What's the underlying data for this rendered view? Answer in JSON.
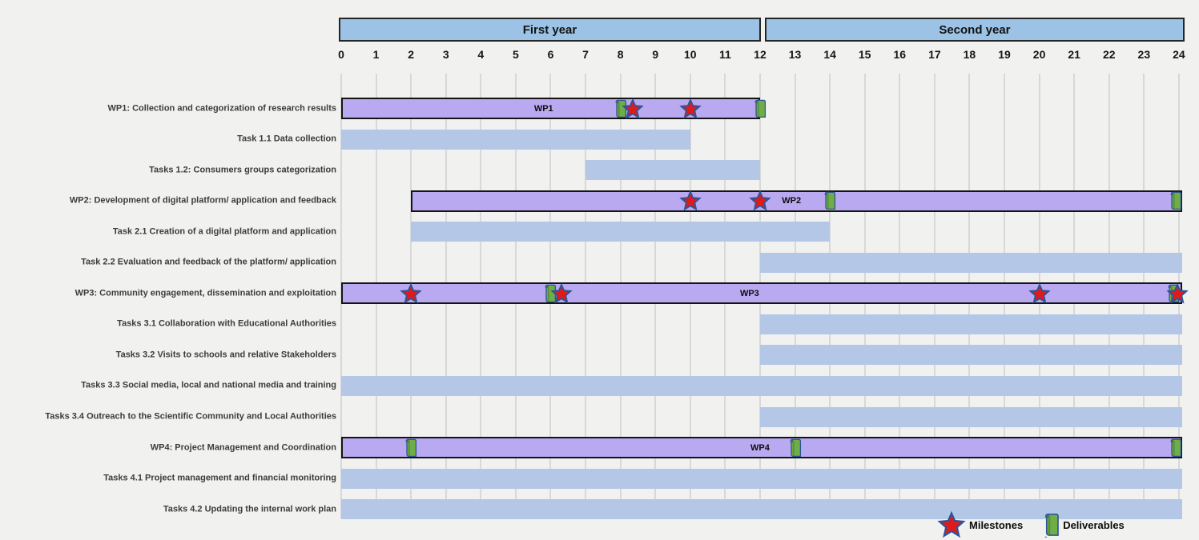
{
  "legend": {
    "milestones_label": "Milestones",
    "deliverables_label": "Deliverables"
  },
  "colors": {
    "year_band_fill": "#9cc3e5",
    "year_band_border": "#262626",
    "wp_bar_fill": "#b9a9f1",
    "wp_bar_border": "#141414",
    "task_bar_fill": "#b4c7e7",
    "milestone_fill": "#e01a1a",
    "marker_outline": "#2e5496",
    "deliverable_fill": "#6fae47",
    "gridline": "#d8d8d8",
    "background": "#f1f1f0"
  },
  "chart_data": {
    "type": "gantt",
    "title": "",
    "x_axis": {
      "min": 0,
      "max": 24,
      "tick_interval": 1,
      "ticks": [
        0,
        1,
        2,
        3,
        4,
        5,
        6,
        7,
        8,
        9,
        10,
        11,
        12,
        13,
        14,
        15,
        16,
        17,
        18,
        19,
        20,
        21,
        22,
        23,
        24
      ],
      "unit": "month",
      "grid": true,
      "bands": [
        {
          "label": "First year",
          "start": 0,
          "end": 12
        },
        {
          "label": "Second year",
          "start": 12,
          "end": 24
        }
      ]
    },
    "legend_entries": [
      "Milestones",
      "Deliverables"
    ],
    "rows": [
      {
        "label": "WP1: Collection and categorization of research results",
        "kind": "wp",
        "bar_label": "WP1",
        "bar_label_month": 5.8,
        "start": 0,
        "end": 12,
        "deliverables": [
          8,
          12
        ],
        "milestones": [
          8.35,
          10
        ]
      },
      {
        "label": "Task 1.1 Data collection",
        "kind": "task",
        "start": 0,
        "end": 10,
        "deliverables": [],
        "milestones": []
      },
      {
        "label": "Tasks 1.2: Consumers groups categorization",
        "kind": "task",
        "start": 7,
        "end": 12,
        "deliverables": [],
        "milestones": []
      },
      {
        "label": "WP2: Development of digital platform/ application and feedback",
        "kind": "wp",
        "bar_label": "WP2",
        "bar_label_month": 12.9,
        "start": 2,
        "end": 24,
        "deliverables": [
          14,
          23.9
        ],
        "milestones": [
          10,
          12
        ]
      },
      {
        "label": "Task 2.1 Creation of a digital platform and application",
        "kind": "task",
        "start": 2,
        "end": 14,
        "deliverables": [],
        "milestones": []
      },
      {
        "label": "Task 2.2 Evaluation and feedback of the platform/ application",
        "kind": "task",
        "start": 12,
        "end": 24,
        "deliverables": [],
        "milestones": []
      },
      {
        "label": "WP3: Community engagement, dissemination and exploitation",
        "kind": "wp",
        "bar_label": "WP3",
        "bar_label_month": 11.7,
        "start": 0,
        "end": 24,
        "deliverables": [
          6,
          23.85
        ],
        "milestones": [
          2,
          6.3,
          20,
          23.95
        ]
      },
      {
        "label": "Tasks 3.1 Collaboration with Educational Authorities",
        "kind": "task",
        "start": 12,
        "end": 24,
        "deliverables": [],
        "milestones": []
      },
      {
        "label": "Tasks 3.2 Visits to schools and relative Stakeholders",
        "kind": "task",
        "start": 12,
        "end": 24,
        "deliverables": [],
        "milestones": []
      },
      {
        "label": "Tasks 3.3 Social media, local and national media and training",
        "kind": "task",
        "start": 0,
        "end": 24,
        "deliverables": [],
        "milestones": []
      },
      {
        "label": "Tasks 3.4 Outreach to the Scientific Community and Local Authorities",
        "kind": "task",
        "start": 12,
        "end": 24,
        "deliverables": [],
        "milestones": []
      },
      {
        "label": "WP4: Project Management and Coordination",
        "kind": "wp",
        "bar_label": "WP4",
        "bar_label_month": 12.0,
        "start": 0,
        "end": 24,
        "deliverables": [
          2,
          13,
          23.9
        ],
        "milestones": []
      },
      {
        "label": "Tasks 4.1 Project management and financial monitoring",
        "kind": "task",
        "start": 0,
        "end": 24,
        "deliverables": [],
        "milestones": []
      },
      {
        "label": "Tasks 4.2 Updating the internal work plan",
        "kind": "task",
        "start": 0,
        "end": 24,
        "deliverables": [],
        "milestones": []
      }
    ]
  }
}
